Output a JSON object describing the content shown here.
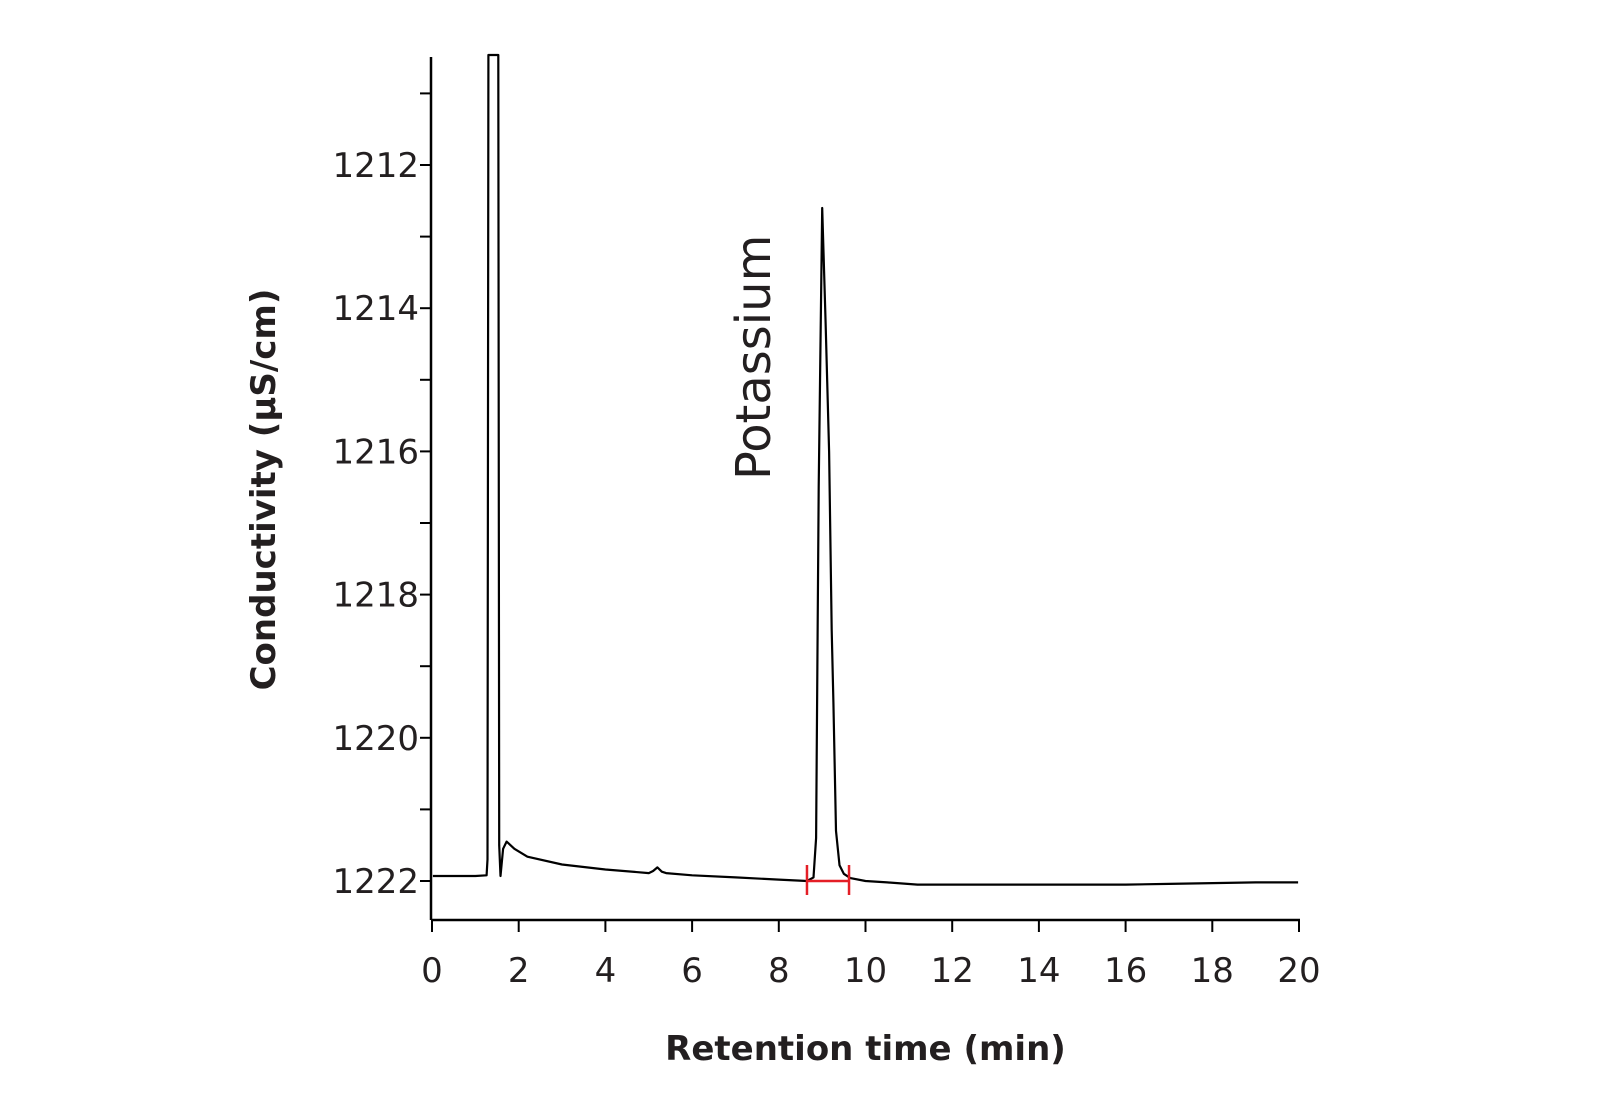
{
  "chart_data": {
    "type": "line",
    "title": "",
    "xlabel": "Retention time (min)",
    "ylabel": "Conductivity (µS/cm)",
    "xlim": [
      0,
      20
    ],
    "ylim": [
      1222.5,
      1210.5
    ],
    "y_axis_inverted": true,
    "x_ticks": [
      0,
      2,
      4,
      6,
      8,
      10,
      12,
      14,
      16,
      18,
      20
    ],
    "x_tick_labels": [
      "0",
      "2",
      "4",
      "6",
      "8",
      "10",
      "12",
      "14",
      "16",
      "18",
      "20"
    ],
    "y_ticks": [
      1212,
      1214,
      1216,
      1218,
      1220,
      1222
    ],
    "y_tick_labels": [
      "1212",
      "1214",
      "1216",
      "1218",
      "1220",
      "1222"
    ],
    "y_minor_ticks": [
      1211,
      1213,
      1215,
      1217,
      1219,
      1221
    ],
    "grid": false,
    "legend": "none",
    "series": [
      {
        "color": "#000000",
        "x": [
          0.02,
          0.5,
          1.0,
          1.26,
          1.28,
          1.3,
          1.53,
          1.55,
          1.58,
          1.64,
          1.72,
          1.9,
          2.2,
          3.0,
          4.0,
          5.0,
          5.1,
          5.2,
          5.3,
          5.4,
          6.0,
          7.0,
          8.0,
          8.65,
          8.8,
          8.86,
          8.92,
          9.0,
          9.08,
          9.16,
          9.22,
          9.26,
          9.32,
          9.4,
          9.5,
          9.65,
          10.0,
          10.5,
          11.2,
          12.0,
          13.0,
          14.0,
          15.0,
          16.0,
          17.0,
          18.0,
          19.0,
          19.98
        ],
        "y": [
          1221.93,
          1221.93,
          1221.93,
          1221.92,
          1221.7,
          1210.0,
          1210.0,
          1221.5,
          1221.93,
          1221.55,
          1221.45,
          1221.55,
          1221.66,
          1221.77,
          1221.84,
          1221.89,
          1221.86,
          1221.81,
          1221.87,
          1221.89,
          1221.92,
          1221.95,
          1221.98,
          1222.0,
          1221.95,
          1221.4,
          1216.5,
          1212.6,
          1214.2,
          1216.0,
          1218.5,
          1219.5,
          1221.3,
          1221.78,
          1221.9,
          1221.96,
          1222.0,
          1222.02,
          1222.05,
          1222.05,
          1222.05,
          1222.05,
          1222.05,
          1222.05,
          1222.04,
          1222.03,
          1222.02,
          1222.02
        ]
      }
    ],
    "annotations": [
      {
        "text": "Potassium",
        "x": 7.5,
        "y": 1216.4,
        "rotation": -90
      }
    ],
    "integration_marker": {
      "color": "#e41e26",
      "x_start": 8.65,
      "x_end": 9.62,
      "y": 1222.0
    }
  }
}
